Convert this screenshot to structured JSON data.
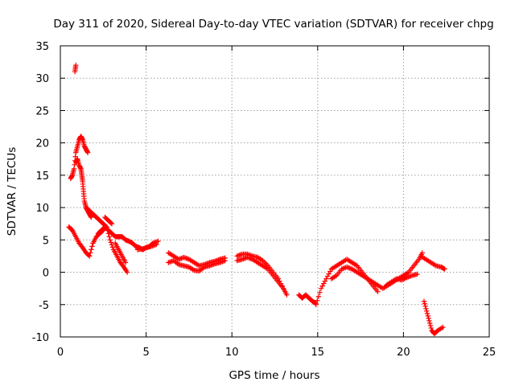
{
  "chart_data": {
    "type": "scatter",
    "title": "Day 311 of 2020, Sidereal Day-to-day VTEC variation (SDTVAR) for receiver chpg",
    "xlabel": "GPS time / hours",
    "ylabel": "SDTVAR / TECUs",
    "xlim": [
      0,
      25
    ],
    "ylim": [
      -10,
      35
    ],
    "xticks": [
      0,
      5,
      10,
      15,
      20,
      25
    ],
    "yticks": [
      -10,
      -5,
      0,
      5,
      10,
      15,
      20,
      25,
      30,
      35
    ],
    "xtick_labels": [
      "0",
      "5",
      "10",
      "15",
      "20",
      "25"
    ],
    "ytick_labels": [
      "-10",
      "-5",
      "0",
      "5",
      "10",
      "15",
      "20",
      "25",
      "30",
      "35"
    ],
    "grid": true,
    "marker": "plus",
    "color": "#ff0000",
    "series": [
      {
        "name": "SDTVAR",
        "x": [
          0.6,
          0.7,
          0.8,
          0.9,
          1.0,
          1.1,
          1.2,
          1.3,
          1.4,
          1.5,
          1.6,
          0.85,
          0.9,
          0.9,
          1.0,
          1.1,
          1.2,
          1.25,
          1.3,
          1.35,
          1.4,
          1.5,
          1.6,
          1.7,
          1.8,
          0.5,
          0.7,
          0.9,
          1.1,
          1.3,
          1.5,
          1.7,
          1.9,
          2.1,
          2.3,
          2.5,
          1.5,
          1.7,
          1.9,
          2.1,
          2.3,
          2.5,
          2.7,
          2.9,
          3.1,
          3.3,
          3.5,
          3.7,
          3.9,
          2.2,
          2.4,
          2.6,
          2.8,
          3.0,
          3.2,
          3.4,
          3.6,
          3.8,
          4.0,
          4.2,
          4.4,
          4.6,
          4.8,
          5.0,
          5.2,
          5.4,
          5.7,
          2.6,
          2.8,
          3.0,
          3.2,
          3.4,
          3.6,
          3.8,
          4.5,
          4.8,
          5.0,
          5.3,
          5.6,
          6.3,
          6.6,
          6.9,
          7.2,
          7.5,
          7.8,
          8.1,
          8.4,
          8.7,
          9.0,
          9.3,
          9.6,
          6.3,
          6.6,
          6.9,
          7.2,
          7.5,
          7.8,
          8.1,
          8.4,
          8.7,
          9.0,
          9.3,
          9.6,
          10.3,
          10.6,
          10.9,
          11.2,
          11.5,
          11.8,
          12.1,
          12.4,
          12.7,
          13.0,
          13.2,
          10.3,
          10.6,
          10.9,
          11.2,
          11.5,
          11.8,
          12.1,
          12.4,
          12.7,
          13.0,
          13.9,
          14.1,
          14.3,
          14.5,
          14.7,
          14.9,
          14.9,
          15.2,
          15.5,
          15.8,
          16.1,
          16.4,
          16.7,
          17.0,
          17.3,
          17.6,
          17.9,
          18.2,
          18.5,
          15.8,
          16.1,
          16.4,
          16.7,
          17.0,
          17.3,
          17.6,
          17.9,
          18.2,
          18.5,
          18.8,
          19.1,
          19.4,
          19.7,
          20.0,
          20.3,
          20.6,
          20.9,
          21.1,
          19.0,
          19.3,
          19.6,
          19.9,
          20.2,
          20.5,
          20.8,
          21.0,
          21.3,
          21.6,
          21.9,
          22.2,
          22.4,
          21.2,
          21.35,
          21.5,
          21.65,
          21.8,
          22.0,
          22.3
        ],
        "y": [
          14.5,
          15.0,
          16.0,
          18.5,
          19.5,
          20.5,
          21.0,
          20.5,
          19.5,
          19.0,
          18.5,
          31.0,
          32.0,
          17.0,
          17.5,
          16.5,
          16.0,
          15.0,
          14.0,
          12.5,
          11.0,
          10.0,
          9.5,
          9.0,
          8.5,
          7.0,
          6.5,
          5.5,
          4.5,
          3.8,
          3.0,
          2.5,
          4.5,
          5.5,
          6.0,
          6.5,
          10.0,
          9.5,
          9.0,
          8.5,
          8.0,
          7.5,
          7.0,
          5.0,
          3.5,
          2.5,
          1.5,
          0.8,
          0.0,
          6.0,
          6.5,
          7.0,
          6.5,
          6.0,
          5.5,
          5.5,
          5.5,
          5.0,
          4.8,
          4.5,
          4.0,
          3.8,
          3.5,
          3.8,
          4.0,
          4.5,
          4.8,
          8.5,
          8.0,
          7.5,
          4.5,
          3.5,
          2.5,
          1.5,
          3.5,
          3.6,
          3.8,
          4.0,
          4.3,
          3.0,
          2.5,
          2.0,
          2.3,
          2.0,
          1.5,
          1.0,
          1.2,
          1.5,
          1.7,
          2.0,
          2.2,
          1.5,
          1.8,
          1.2,
          1.0,
          0.8,
          0.3,
          0.2,
          0.8,
          1.0,
          1.3,
          1.5,
          1.8,
          2.5,
          2.8,
          2.8,
          2.5,
          2.3,
          1.8,
          1.0,
          0.0,
          -1.0,
          -2.5,
          -3.5,
          1.8,
          2.0,
          2.3,
          2.0,
          1.5,
          1.0,
          0.5,
          -0.5,
          -1.5,
          -2.5,
          -3.5,
          -4.0,
          -3.5,
          -4.0,
          -4.5,
          -4.8,
          -5.0,
          -2.5,
          -1.0,
          0.5,
          1.0,
          1.5,
          2.0,
          1.5,
          1.0,
          0.0,
          -1.0,
          -2.0,
          -3.0,
          -1.0,
          -0.5,
          0.5,
          0.8,
          0.5,
          0.0,
          -0.5,
          -1.0,
          -1.5,
          -2.0,
          -2.5,
          -2.0,
          -1.5,
          -1.0,
          -0.5,
          0.0,
          1.0,
          2.0,
          3.0,
          -2.0,
          -1.5,
          -1.0,
          -1.2,
          -0.8,
          -0.5,
          -0.3,
          2.5,
          2.0,
          1.5,
          1.0,
          0.8,
          0.5,
          -4.5,
          -6.0,
          -7.5,
          -9.0,
          -9.5,
          -9.0,
          -8.5
        ]
      }
    ]
  }
}
